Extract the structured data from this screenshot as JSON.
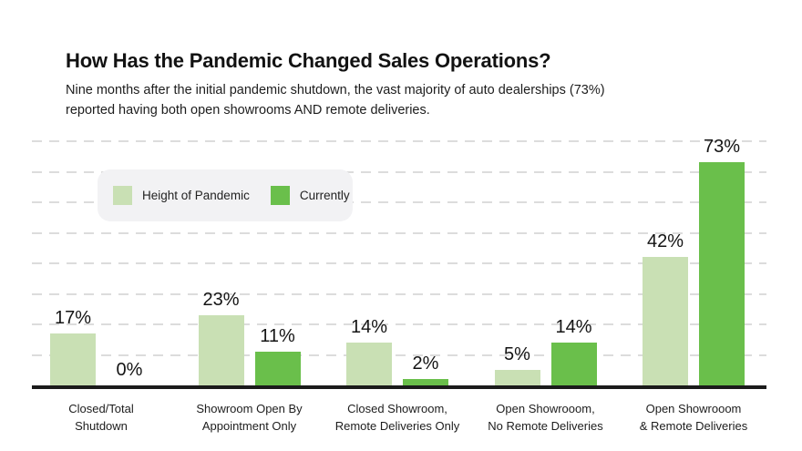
{
  "header": {
    "title": "How Has the Pandemic Changed Sales Operations?",
    "subtitle": "Nine months after the initial pandemic shutdown, the vast majority of auto dealerships (73%)\nreported having both open showrooms AND remote deliveries."
  },
  "legend": {
    "background": "#f2f2f4"
  },
  "chart_data": {
    "type": "bar",
    "title": "How Has the Pandemic Changed Sales Operations?",
    "categories": [
      "Closed/Total\nShutdown",
      "Showroom Open By\nAppointment Only",
      "Closed Showroom,\nRemote Deliveries Only",
      "Open Showrooom,\nNo Remote Deliveries",
      "Open Showrooom\n& Remote Deliveries"
    ],
    "series": [
      {
        "name": "Height of Pandemic",
        "color": "#c9e0b4",
        "values": [
          17,
          23,
          14,
          5,
          42
        ]
      },
      {
        "name": "Currently",
        "color": "#6abf4b",
        "values": [
          0,
          11,
          2,
          14,
          73
        ]
      }
    ],
    "value_suffix": "%",
    "xlabel": "",
    "ylabel": "",
    "ylim": [
      0,
      80
    ],
    "gridline_step": 10,
    "grid": "dashed-horizontal",
    "gridline_color": "#dcdcdc",
    "baseline_color": "#1b1b1b",
    "legend_position": "upper-left"
  }
}
